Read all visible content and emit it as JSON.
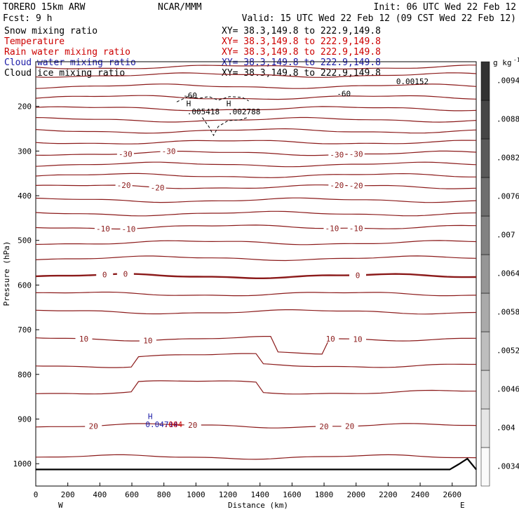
{
  "header": {
    "model": "TORERO  15km ARW",
    "center": "NCAR/MMM",
    "init": "Init: 06 UTC Wed 22 Feb 12",
    "fcst": "Fcst:    9 h",
    "valid": "Valid: 15 UTC Wed 22 Feb 12 (09 CST Wed 22 Feb 12)"
  },
  "fields": [
    {
      "name": "Snow mixing ratio",
      "xy": "XY=  38.3,149.8 to 222.9,149.8",
      "color": "#000000",
      "xy_color": "#000000"
    },
    {
      "name": "Temperature",
      "xy": "XY=  38.3,149.8 to 222.9,149.8",
      "color": "#cc0000",
      "xy_color": "#cc0000"
    },
    {
      "name": "Rain water mixing ratio",
      "xy": "XY=  38.3,149.8 to 222.9,149.8",
      "color": "#cc0000",
      "xy_color": "#cc0000"
    },
    {
      "name": "Cloud water mixing ratio",
      "xy": "XY=  38.3,149.8 to 222.9,149.8",
      "color": "#1a1aa6",
      "xy_color": "#1a1aa6"
    },
    {
      "name": "Cloud ice mixing ratio",
      "xy": "XY=  38.3,149.8 to 222.9,149.8",
      "color": "#000000",
      "xy_color": "#000000"
    }
  ],
  "chart_data": {
    "type": "contour",
    "xlabel": "Distance (km)",
    "ylabel": "Pressure (hPa)",
    "xlim": [
      0,
      2750
    ],
    "ylim": [
      1050,
      100
    ],
    "x_ticks": [
      0,
      200,
      400,
      600,
      800,
      1000,
      1200,
      1400,
      1600,
      1800,
      2000,
      2200,
      2400,
      2600
    ],
    "y_ticks": [
      200,
      300,
      400,
      500,
      600,
      700,
      800,
      900,
      1000
    ],
    "left_end_label": "W",
    "right_end_label": "E",
    "colorbar": {
      "unit": "g kg",
      "unit_exp": "-1",
      "ticks": [
        ".0034",
        ".004",
        ".0046",
        ".0052",
        ".0058",
        ".0064",
        ".007",
        ".0076",
        ".0082",
        ".0088",
        ".0094"
      ]
    },
    "temperature_lines": [
      {
        "p": 112,
        "label": ""
      },
      {
        "p": 130,
        "label": ""
      },
      {
        "p": 155,
        "label": ""
      },
      {
        "p": 180,
        "label": ""
      },
      {
        "p": 205,
        "label": ""
      },
      {
        "p": 230,
        "label": ""
      },
      {
        "p": 255,
        "label": ""
      },
      {
        "p": 280,
        "label": ""
      },
      {
        "p": 305,
        "label": "-30",
        "label_x": [
          560,
          830,
          1880,
          2000
        ]
      },
      {
        "p": 330,
        "label": ""
      },
      {
        "p": 355,
        "label": ""
      },
      {
        "p": 380,
        "label": "-20",
        "label_x": [
          550,
          760,
          1880,
          2000
        ]
      },
      {
        "p": 410,
        "label": ""
      },
      {
        "p": 440,
        "label": ""
      },
      {
        "p": 470,
        "label": "-10",
        "label_x": [
          420,
          580,
          1850,
          2000
        ]
      },
      {
        "p": 505,
        "label": ""
      },
      {
        "p": 540,
        "label": ""
      },
      {
        "p": 580,
        "label": "0",
        "label_x": [
          430,
          560,
          2010
        ],
        "bold": true
      },
      {
        "p": 620,
        "label": ""
      },
      {
        "p": 660,
        "label": ""
      },
      {
        "p": 720,
        "label": "10",
        "label_x": [
          300,
          700,
          1840,
          2010
        ]
      },
      {
        "p": 780,
        "label": ""
      },
      {
        "p": 840,
        "label": ""
      },
      {
        "p": 915,
        "label": "20",
        "label_x": [
          360,
          980,
          1800,
          1960
        ]
      },
      {
        "p": 985,
        "label": ""
      }
    ],
    "annotations": [
      {
        "text": "-60",
        "x": 920,
        "p": 182,
        "color": "#000000"
      },
      {
        "text": "-60",
        "x": 1880,
        "p": 178,
        "color": "#000000"
      },
      {
        "text": "H",
        "x": 940,
        "p": 200,
        "color": "#000000"
      },
      {
        "text": ".005418",
        "x": 945,
        "p": 218,
        "color": "#000000"
      },
      {
        "text": "H",
        "x": 1190,
        "p": 200,
        "color": "#000000"
      },
      {
        "text": ".002788",
        "x": 1200,
        "p": 218,
        "color": "#000000"
      },
      {
        "text": "H",
        "x": 700,
        "p": 900,
        "color": "#1a1aa6"
      },
      {
        "text": "0.04714",
        "x": 685,
        "p": 918,
        "color": "#1a1aa6"
      },
      {
        "text": ".004",
        "x": 800,
        "p": 918,
        "color": "#cc0000"
      },
      {
        "text": "0.00152",
        "x": 2250,
        "p": 150,
        "color": "#000000"
      }
    ]
  }
}
